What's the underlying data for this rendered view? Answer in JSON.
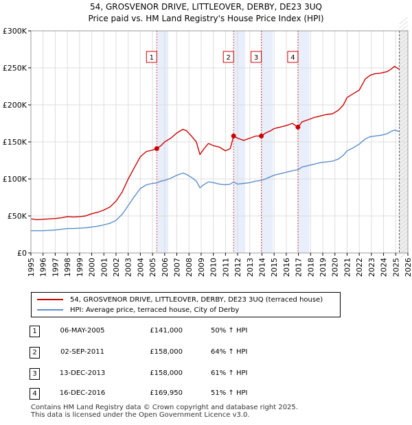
{
  "title_line1": "54, GROSVENOR DRIVE, LITTLEOVER, DERBY, DE23 3UQ",
  "title_line2": "Price paid vs. HM Land Registry's House Price Index (HPI)",
  "chart_data": {
    "type": "line",
    "xlim": [
      1995,
      2026
    ],
    "ylim": [
      0,
      300000
    ],
    "y_ticks": [
      0,
      50000,
      100000,
      150000,
      200000,
      250000,
      300000
    ],
    "y_tick_labels": [
      "£0",
      "£50K",
      "£100K",
      "£150K",
      "£200K",
      "£250K",
      "£300K"
    ],
    "x_ticks": [
      1995,
      1996,
      1997,
      1998,
      1999,
      2000,
      2001,
      2002,
      2003,
      2004,
      2005,
      2006,
      2007,
      2008,
      2009,
      2010,
      2011,
      2012,
      2013,
      2014,
      2015,
      2016,
      2017,
      2018,
      2019,
      2020,
      2021,
      2022,
      2023,
      2024,
      2025,
      2026
    ],
    "grid": true,
    "future_shade_from": 2025.3,
    "series": [
      {
        "name": "54, GROSVENOR DRIVE, LITTLEOVER, DERBY, DE23 3UQ (terraced house)",
        "color": "#cc0000",
        "x": [
          1995.0,
          1995.5,
          1996.0,
          1996.5,
          1997.0,
          1997.5,
          1998.0,
          1998.5,
          1999.0,
          1999.5,
          2000.0,
          2000.5,
          2001.0,
          2001.5,
          2002.0,
          2002.5,
          2003.0,
          2003.5,
          2004.0,
          2004.5,
          2005.0,
          2005.35,
          2005.7,
          2006.0,
          2006.5,
          2007.0,
          2007.5,
          2007.8,
          2008.2,
          2008.6,
          2008.9,
          2009.2,
          2009.6,
          2010.0,
          2010.5,
          2011.0,
          2011.4,
          2011.67,
          2012.0,
          2012.5,
          2013.0,
          2013.5,
          2013.95,
          2014.3,
          2014.7,
          2015.0,
          2015.5,
          2016.0,
          2016.5,
          2016.96,
          2017.3,
          2017.8,
          2018.3,
          2018.8,
          2019.3,
          2019.8,
          2020.3,
          2020.7,
          2021.0,
          2021.5,
          2022.0,
          2022.5,
          2022.9,
          2023.3,
          2023.8,
          2024.3,
          2024.6,
          2024.9,
          2025.3
        ],
        "y": [
          46000,
          45000,
          45500,
          46000,
          46500,
          47500,
          49000,
          48500,
          49000,
          50000,
          53000,
          55000,
          58000,
          62000,
          70000,
          82000,
          100000,
          115000,
          130000,
          137000,
          139000,
          141000,
          145000,
          150000,
          155000,
          162000,
          167000,
          165000,
          158000,
          150000,
          133000,
          140000,
          148000,
          145000,
          143000,
          138000,
          141000,
          158000,
          155000,
          152000,
          155000,
          158000,
          158000,
          162000,
          165000,
          168000,
          170000,
          172000,
          175000,
          169950,
          177000,
          180000,
          183000,
          185000,
          187000,
          188000,
          193000,
          200000,
          210000,
          215000,
          220000,
          235000,
          240000,
          242000,
          243000,
          245000,
          248000,
          252000,
          248000
        ]
      },
      {
        "name": "HPI: Average price, terraced house, City of Derby",
        "color": "#5b8dc9",
        "x": [
          1995.0,
          1995.5,
          1996.0,
          1996.5,
          1997.0,
          1997.5,
          1998.0,
          1998.5,
          1999.0,
          1999.5,
          2000.0,
          2000.5,
          2001.0,
          2001.5,
          2002.0,
          2002.5,
          2003.0,
          2003.5,
          2004.0,
          2004.5,
          2005.0,
          2005.35,
          2005.7,
          2006.0,
          2006.5,
          2007.0,
          2007.5,
          2007.8,
          2008.2,
          2008.6,
          2008.9,
          2009.2,
          2009.6,
          2010.0,
          2010.5,
          2011.0,
          2011.4,
          2011.67,
          2012.0,
          2012.5,
          2013.0,
          2013.5,
          2013.95,
          2014.3,
          2014.7,
          2015.0,
          2015.5,
          2016.0,
          2016.5,
          2016.96,
          2017.3,
          2017.8,
          2018.3,
          2018.8,
          2019.3,
          2019.8,
          2020.3,
          2020.7,
          2021.0,
          2021.5,
          2022.0,
          2022.5,
          2022.9,
          2023.3,
          2023.8,
          2024.3,
          2024.6,
          2024.9,
          2025.3
        ],
        "y": [
          30000,
          30000,
          30000,
          30500,
          31000,
          32000,
          33000,
          33000,
          33500,
          34000,
          35000,
          36000,
          38000,
          40000,
          44000,
          52000,
          64000,
          76000,
          87000,
          92000,
          94000,
          94500,
          97000,
          98000,
          101000,
          105000,
          108000,
          106000,
          102000,
          97000,
          88000,
          92000,
          96000,
          95000,
          93000,
          92000,
          93000,
          96000,
          93000,
          94000,
          95000,
          97000,
          98000,
          100000,
          103000,
          105000,
          107000,
          109000,
          111000,
          112500,
          116000,
          118000,
          120000,
          122000,
          123000,
          124000,
          127000,
          132000,
          138000,
          142000,
          147000,
          154000,
          157000,
          158000,
          159000,
          161000,
          164000,
          166000,
          164000
        ]
      }
    ],
    "sales": [
      {
        "label": "1",
        "x": 2005.35,
        "date": "06-MAY-2005",
        "price": 141000,
        "price_text": "£141,000",
        "hpi_text": "50% ↑ HPI"
      },
      {
        "label": "2",
        "x": 2011.67,
        "date": "02-SEP-2011",
        "price": 158000,
        "price_text": "£158,000",
        "hpi_text": "64% ↑ HPI"
      },
      {
        "label": "3",
        "x": 2013.95,
        "date": "13-DEC-2013",
        "price": 158000,
        "price_text": "£158,000",
        "hpi_text": "61% ↑ HPI"
      },
      {
        "label": "4",
        "x": 2016.96,
        "date": "16-DEC-2016",
        "price": 169950,
        "price_text": "£169,950",
        "hpi_text": "51% ↑ HPI"
      }
    ]
  },
  "legend": {
    "red_label": "54, GROSVENOR DRIVE, LITTLEOVER, DERBY, DE23 3UQ (terraced house)",
    "blue_label": "HPI: Average price, terraced house, City of Derby"
  },
  "footer": {
    "line1": "Contains HM Land Registry data © Crown copyright and database right 2025.",
    "line2": "This data is licensed under the Open Government Licence v3.0."
  }
}
